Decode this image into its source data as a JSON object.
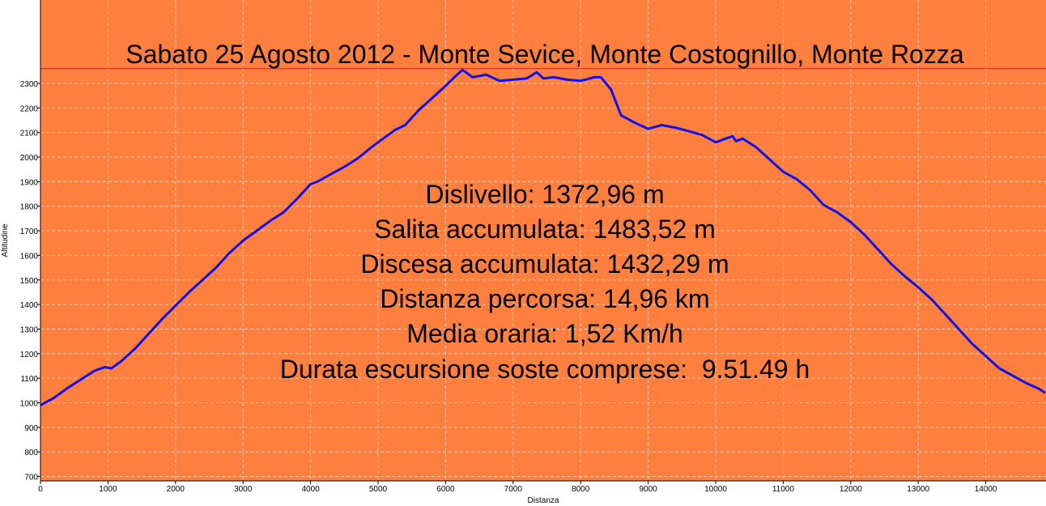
{
  "chart_data": {
    "type": "line",
    "title": "Sabato 25 Agosto 2012 - Monte Sevice, Monte Costognillo, Monte Rozza",
    "xlabel": "Distanza",
    "ylabel": "Altitudine",
    "xlim": [
      0,
      14960
    ],
    "ylim": [
      680,
      2360
    ],
    "grid": true,
    "background_color": "#FF7F3F",
    "line_color": "#1010E8",
    "reference_line": {
      "y": 2360,
      "color": "#D42020"
    },
    "x_ticks": [
      0,
      1000,
      2000,
      3000,
      4000,
      5000,
      6000,
      7000,
      8000,
      9000,
      10000,
      11000,
      12000,
      13000,
      14000
    ],
    "y_ticks": [
      700,
      800,
      900,
      1000,
      1100,
      1200,
      1300,
      1400,
      1500,
      1600,
      1700,
      1800,
      1900,
      2000,
      2100,
      2200,
      2300
    ],
    "series": [
      {
        "x": [
          0,
          200,
          400,
          600,
          800,
          950,
          1050,
          1200,
          1400,
          1600,
          1800,
          2000,
          2200,
          2400,
          2600,
          2800,
          3000,
          3200,
          3400,
          3600,
          3800,
          4000,
          4100,
          4300,
          4500,
          4700,
          4900,
          5100,
          5250,
          5400,
          5600,
          5800,
          6000,
          6150,
          6250,
          6400,
          6600,
          6800,
          7000,
          7200,
          7350,
          7450,
          7600,
          7800,
          8000,
          8200,
          8300,
          8450,
          8600,
          8800,
          9000,
          9200,
          9400,
          9600,
          9800,
          10000,
          10150,
          10250,
          10300,
          10400,
          10600,
          10800,
          11000,
          11200,
          11400,
          11600,
          11800,
          12000,
          12200,
          12400,
          12600,
          12800,
          13000,
          13200,
          13400,
          13600,
          13800,
          14000,
          14200,
          14400,
          14600,
          14800,
          14960
        ],
        "values": [
          990,
          1020,
          1060,
          1095,
          1130,
          1145,
          1140,
          1170,
          1220,
          1280,
          1340,
          1395,
          1450,
          1500,
          1550,
          1610,
          1660,
          1700,
          1740,
          1775,
          1830,
          1890,
          1900,
          1930,
          1960,
          1995,
          2040,
          2080,
          2110,
          2130,
          2190,
          2240,
          2290,
          2330,
          2355,
          2325,
          2335,
          2310,
          2315,
          2320,
          2345,
          2320,
          2325,
          2315,
          2310,
          2325,
          2325,
          2275,
          2170,
          2140,
          2115,
          2130,
          2120,
          2105,
          2090,
          2060,
          2075,
          2085,
          2065,
          2075,
          2040,
          1990,
          1940,
          1910,
          1865,
          1805,
          1775,
          1735,
          1685,
          1625,
          1565,
          1515,
          1470,
          1420,
          1360,
          1300,
          1240,
          1190,
          1140,
          1110,
          1080,
          1055,
          1040
        ]
      }
    ],
    "annotations": [
      "Dislivello: 1372,96 m",
      "Salita accumulata: 1483,52 m",
      "Discesa accumulata: 1432,29 m",
      "Distanza percorsa: 14,96 km",
      "Media oraria: 1,52 Km/h",
      "Durata escursione soste comprese:  9.51.49 h"
    ]
  }
}
